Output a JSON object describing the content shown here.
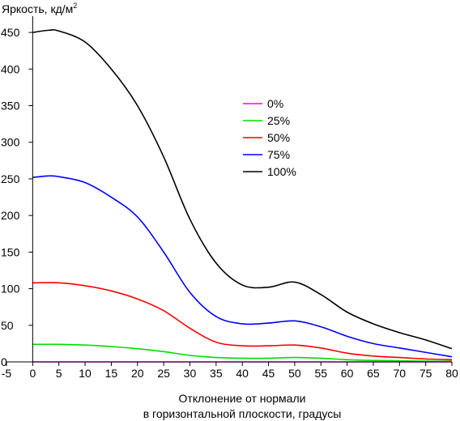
{
  "chart_data": {
    "type": "line",
    "title": "",
    "ylabel": "Яркость, кд/м",
    "ylabel_sup": "2",
    "xlabel": [
      "Отклонение от нормали",
      "в горизонтальной плоскости, градусы"
    ],
    "xlim": [
      -5,
      80
    ],
    "ylim": [
      0,
      470
    ],
    "xticks": [
      -5,
      0,
      5,
      10,
      15,
      20,
      25,
      30,
      35,
      40,
      45,
      50,
      55,
      60,
      65,
      70,
      75,
      80
    ],
    "yticks": [
      0,
      50,
      100,
      150,
      200,
      250,
      300,
      350,
      400,
      450
    ],
    "grid": false,
    "legend_position": "center-right",
    "series": [
      {
        "name": "0%",
        "color": "#ff00ff",
        "points": [
          [
            0,
            0
          ],
          [
            10,
            0
          ],
          [
            20,
            0
          ],
          [
            30,
            0
          ],
          [
            40,
            0
          ],
          [
            50,
            0
          ],
          [
            60,
            0
          ],
          [
            70,
            0
          ],
          [
            80,
            0
          ]
        ]
      },
      {
        "name": "25%",
        "color": "#00dd00",
        "points": [
          [
            0,
            24
          ],
          [
            5,
            24
          ],
          [
            10,
            23
          ],
          [
            15,
            21
          ],
          [
            20,
            18
          ],
          [
            25,
            14
          ],
          [
            30,
            9
          ],
          [
            35,
            6
          ],
          [
            40,
            5
          ],
          [
            45,
            5
          ],
          [
            50,
            6
          ],
          [
            55,
            5
          ],
          [
            60,
            3
          ],
          [
            65,
            2
          ],
          [
            70,
            1.5
          ],
          [
            75,
            1
          ],
          [
            80,
            1
          ]
        ]
      },
      {
        "name": "50%",
        "color": "#ff0000",
        "points": [
          [
            0,
            108
          ],
          [
            5,
            108
          ],
          [
            10,
            104
          ],
          [
            15,
            97
          ],
          [
            20,
            86
          ],
          [
            25,
            70
          ],
          [
            30,
            46
          ],
          [
            35,
            27
          ],
          [
            40,
            22
          ],
          [
            45,
            22
          ],
          [
            50,
            23
          ],
          [
            55,
            19
          ],
          [
            60,
            12
          ],
          [
            65,
            8
          ],
          [
            70,
            6
          ],
          [
            75,
            4
          ],
          [
            80,
            3
          ]
        ]
      },
      {
        "name": "75%",
        "color": "#0000ff",
        "points": [
          [
            0,
            252
          ],
          [
            3,
            254
          ],
          [
            5,
            253
          ],
          [
            10,
            245
          ],
          [
            15,
            225
          ],
          [
            20,
            198
          ],
          [
            25,
            150
          ],
          [
            30,
            95
          ],
          [
            35,
            62
          ],
          [
            40,
            52
          ],
          [
            45,
            53
          ],
          [
            50,
            56
          ],
          [
            55,
            48
          ],
          [
            60,
            35
          ],
          [
            65,
            25
          ],
          [
            70,
            19
          ],
          [
            75,
            13
          ],
          [
            80,
            7
          ]
        ]
      },
      {
        "name": "100%",
        "color": "#000000",
        "points": [
          [
            0,
            450
          ],
          [
            3,
            453
          ],
          [
            5,
            452
          ],
          [
            10,
            437
          ],
          [
            15,
            400
          ],
          [
            20,
            350
          ],
          [
            25,
            280
          ],
          [
            30,
            195
          ],
          [
            35,
            135
          ],
          [
            40,
            105
          ],
          [
            45,
            102
          ],
          [
            50,
            109
          ],
          [
            55,
            92
          ],
          [
            60,
            68
          ],
          [
            65,
            52
          ],
          [
            70,
            40
          ],
          [
            75,
            30
          ],
          [
            80,
            18
          ]
        ]
      }
    ]
  }
}
